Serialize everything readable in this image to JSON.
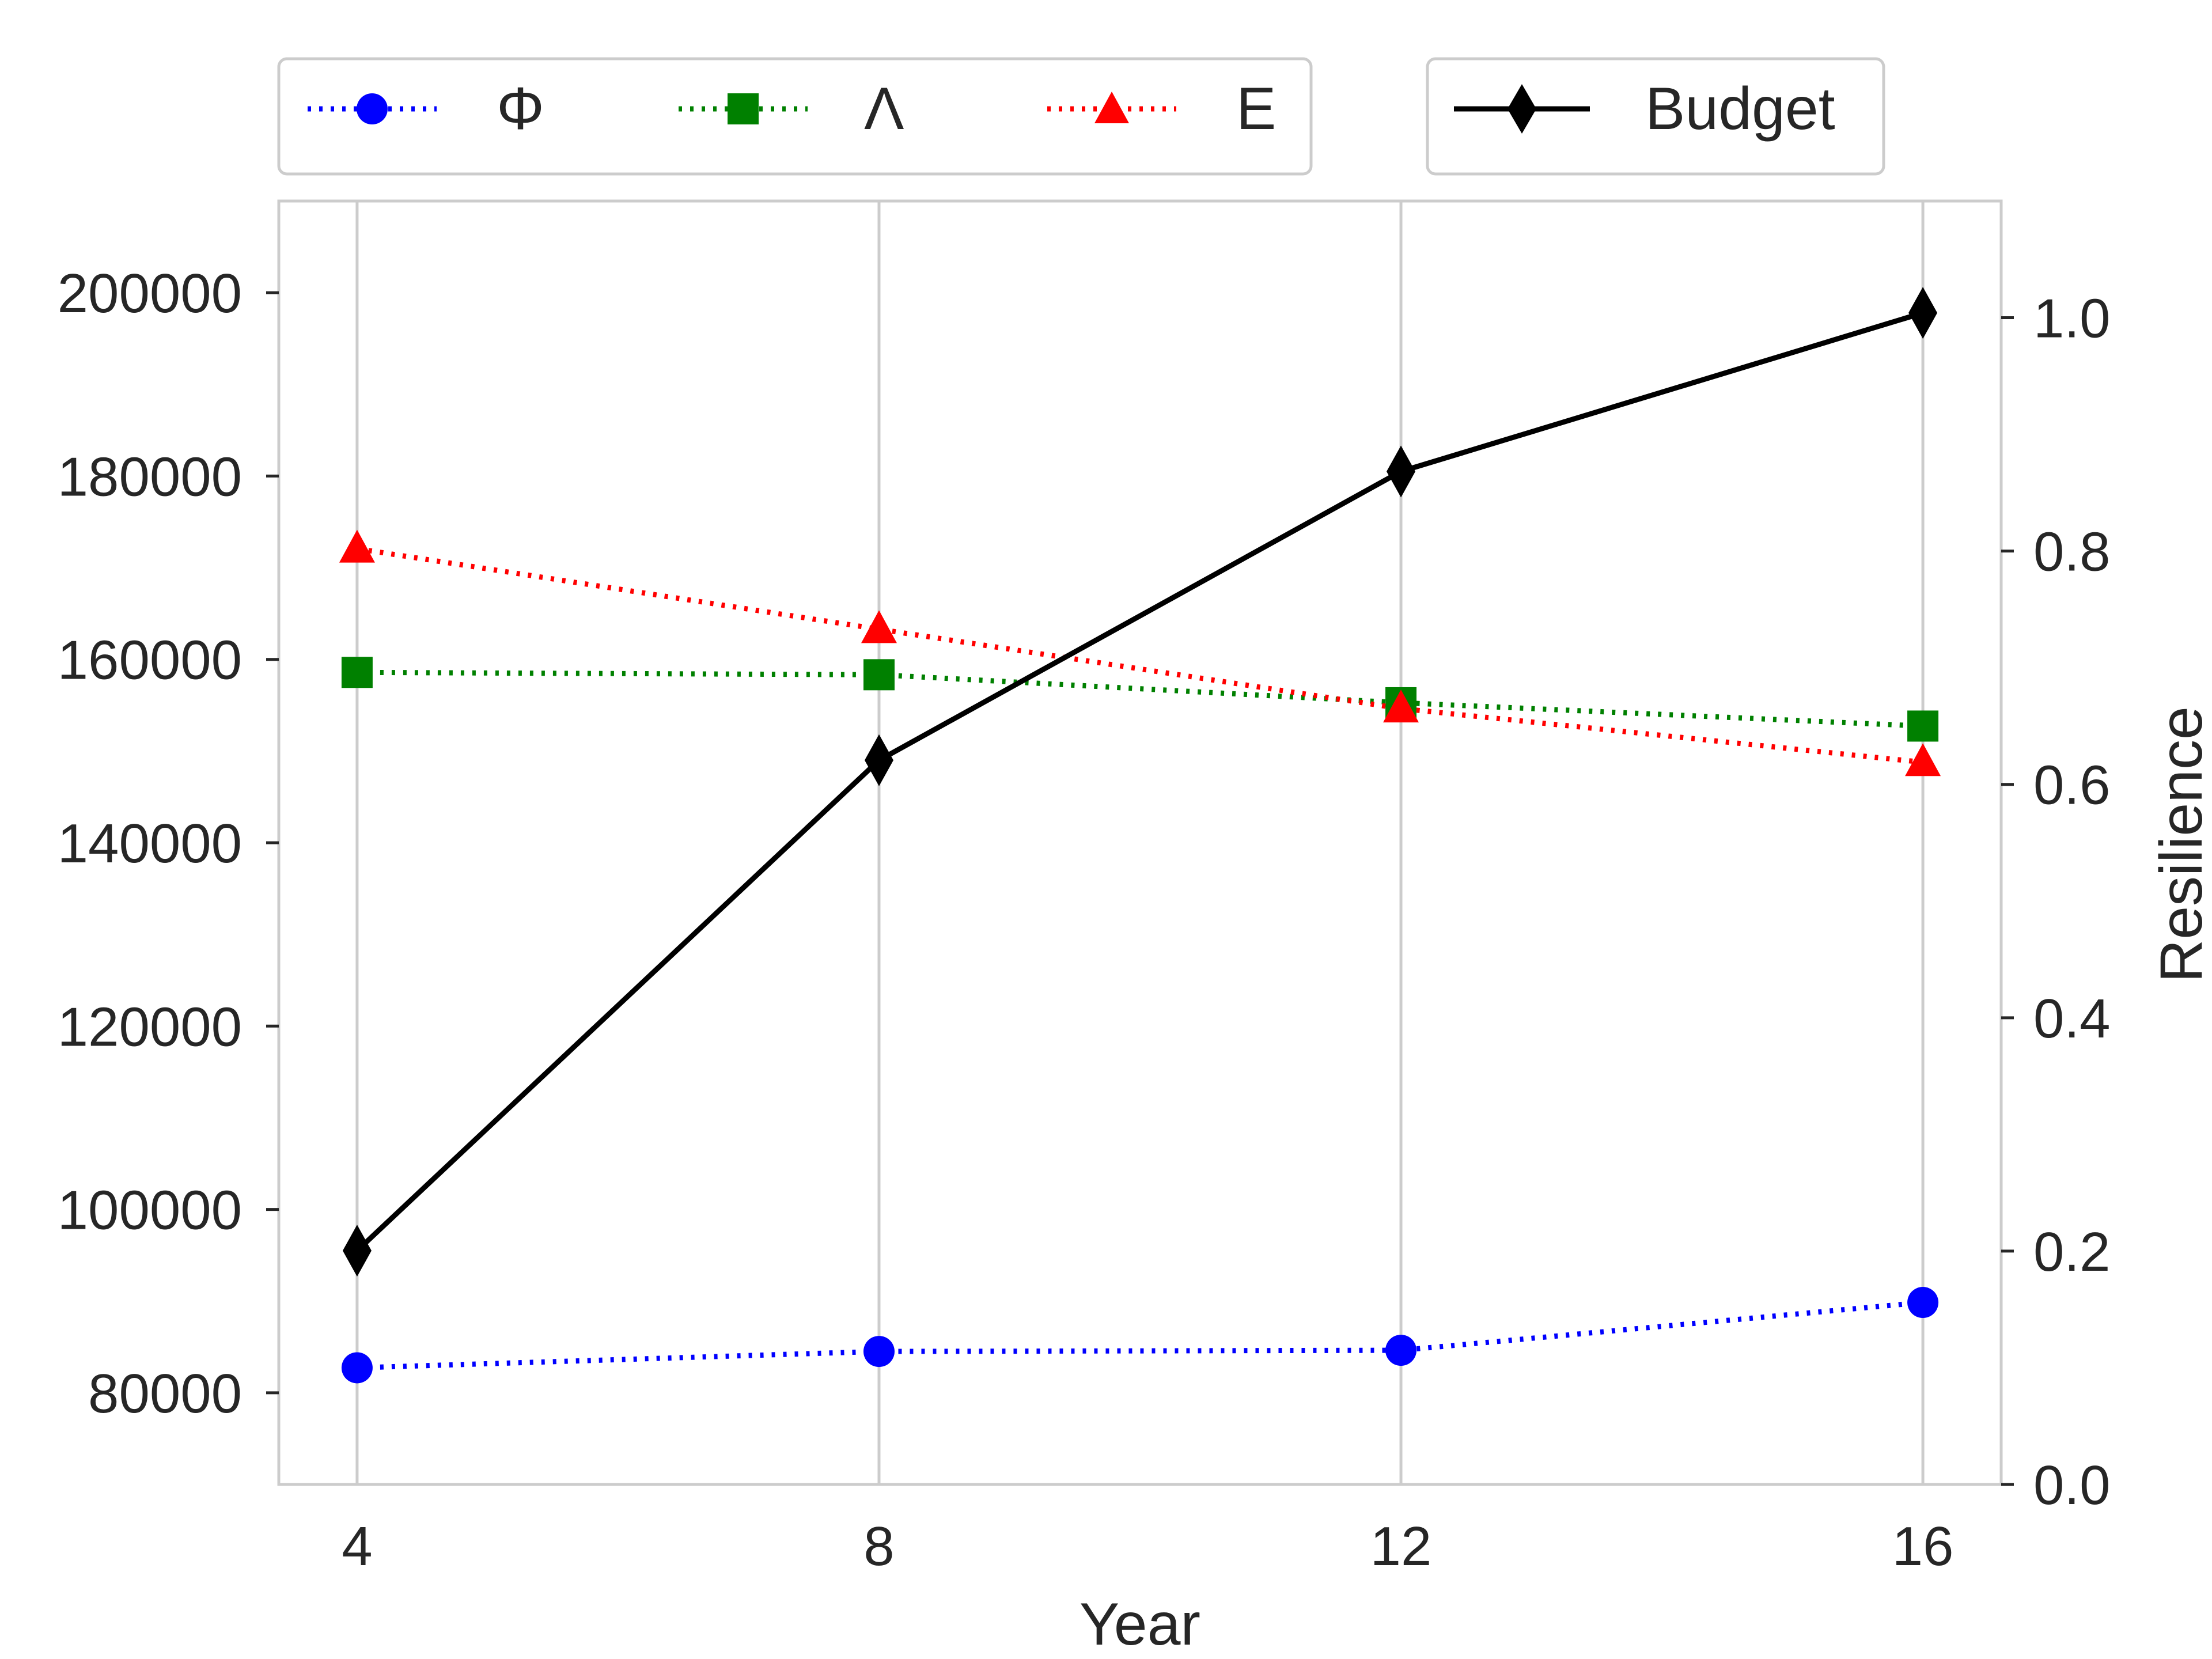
{
  "chart_data": {
    "type": "line",
    "x": [
      4,
      8,
      12,
      16
    ],
    "x_ticks": [
      "4",
      "8",
      "12",
      "16"
    ],
    "xlabel": "Year",
    "xlim": [
      3.4,
      16.6
    ],
    "y_left": {
      "label": "",
      "lim": [
        70000,
        210000
      ],
      "ticks": [
        80000,
        100000,
        120000,
        140000,
        160000,
        180000,
        200000
      ],
      "tick_labels": [
        "80000",
        "100000",
        "120000",
        "140000",
        "160000",
        "180000",
        "200000"
      ]
    },
    "y_right": {
      "label": "Resilience",
      "lim": [
        0.0,
        1.1
      ],
      "ticks": [
        0.0,
        0.2,
        0.4,
        0.6,
        0.8,
        1.0
      ],
      "tick_labels": [
        "0.0",
        "0.2",
        "0.4",
        "0.6",
        "0.8",
        "1.0"
      ]
    },
    "grid": "vertical",
    "series": [
      {
        "name": "Φ",
        "axis": "right",
        "color": "#0000ff",
        "marker": "circle",
        "linestyle": "dotted",
        "values": [
          0.1,
          0.114,
          0.115,
          0.156
        ]
      },
      {
        "name": "Λ",
        "axis": "right",
        "color": "#008000",
        "marker": "square",
        "linestyle": "dotted",
        "values": [
          0.696,
          0.694,
          0.67,
          0.65
        ]
      },
      {
        "name": "E",
        "axis": "right",
        "color": "#ff0000",
        "marker": "triangle",
        "linestyle": "dotted",
        "values": [
          0.802,
          0.733,
          0.665,
          0.619
        ]
      },
      {
        "name": "Budget",
        "axis": "left",
        "color": "#000000",
        "marker": "diamond",
        "linestyle": "solid",
        "values": [
          95500,
          149000,
          180500,
          197800
        ]
      }
    ],
    "legends": [
      {
        "placement": "top-left",
        "entries": [
          "Φ",
          "Λ",
          "E"
        ]
      },
      {
        "placement": "top-right",
        "entries": [
          "Budget"
        ]
      }
    ]
  }
}
